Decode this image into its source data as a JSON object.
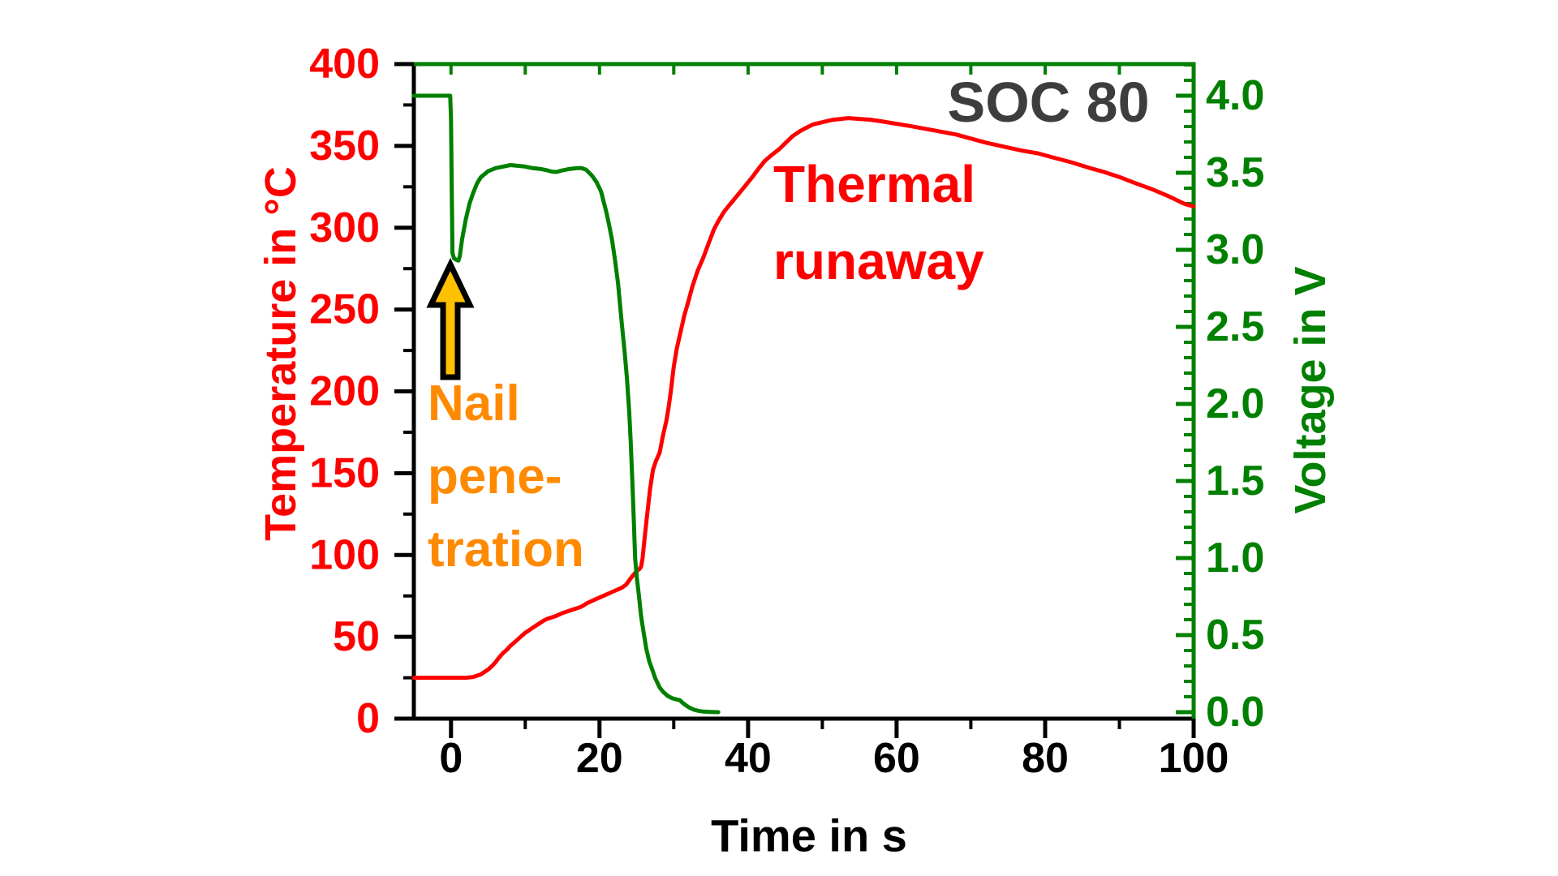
{
  "colors": {
    "red": "#ff0000",
    "green": "#008000",
    "orange": "#ff8a00",
    "gold": "#ffc000",
    "soc_gray": "#3d3d3d",
    "black": "#000000",
    "background": "#ffffff"
  },
  "chart_data": {
    "type": "line",
    "title": "",
    "x": {
      "label": "Time in s",
      "range": [
        -5,
        100
      ],
      "major_ticks": [
        {
          "value": 0,
          "label": "0"
        },
        {
          "value": 20,
          "label": "20"
        },
        {
          "value": 40,
          "label": "40"
        },
        {
          "value": 60,
          "label": "60"
        },
        {
          "value": 80,
          "label": "80"
        },
        {
          "value": 100,
          "label": "100"
        }
      ],
      "minor_step": 10,
      "top_tick_step": 10
    },
    "temp": {
      "label": "Temperature in °C",
      "range": [
        0,
        400
      ],
      "major_ticks": [
        {
          "value": 0,
          "label": "0"
        },
        {
          "value": 50,
          "label": "50"
        },
        {
          "value": 100,
          "label": "100"
        },
        {
          "value": 150,
          "label": "150"
        },
        {
          "value": 200,
          "label": "200"
        },
        {
          "value": 250,
          "label": "250"
        },
        {
          "value": 300,
          "label": "300"
        },
        {
          "value": 350,
          "label": "350"
        },
        {
          "value": 400,
          "label": "400"
        }
      ],
      "minor_step": 25,
      "color": "#ff0000"
    },
    "volt": {
      "label": "Voltage in V",
      "frame_range": [
        -0.042,
        4.205
      ],
      "tick_range": [
        0,
        4
      ],
      "major_ticks": [
        {
          "value": 0,
          "label": "0.0"
        },
        {
          "value": 0.5,
          "label": "0.5"
        },
        {
          "value": 1,
          "label": "1.0"
        },
        {
          "value": 1.5,
          "label": "1.5"
        },
        {
          "value": 2,
          "label": "2.0"
        },
        {
          "value": 2.5,
          "label": "2.5"
        },
        {
          "value": 3,
          "label": "3.0"
        },
        {
          "value": 3.5,
          "label": "3.5"
        },
        {
          "value": 4,
          "label": "4.0"
        }
      ],
      "minor_step": 0.1,
      "color": "#008000"
    },
    "annotations": {
      "soc": "SOC 80",
      "thermal": [
        "Thermal",
        "runaway"
      ],
      "nail": [
        "Nail",
        "pene-",
        "tration"
      ]
    },
    "series": [
      {
        "name": "temperature",
        "axis": "temp",
        "color": "#ff0000",
        "points": [
          [
            -5,
            25
          ],
          [
            0,
            25
          ],
          [
            2,
            25
          ],
          [
            3,
            25.5
          ],
          [
            4,
            27
          ],
          [
            5,
            30
          ],
          [
            5.5,
            32
          ],
          [
            6,
            34.5
          ],
          [
            6.5,
            37.5
          ],
          [
            7,
            40
          ],
          [
            7.5,
            42
          ],
          [
            8,
            44.5
          ],
          [
            8.5,
            46.5
          ],
          [
            9,
            48.5
          ],
          [
            9.5,
            50.5
          ],
          [
            10,
            52.5
          ],
          [
            10.5,
            54
          ],
          [
            11,
            55.5
          ],
          [
            11.5,
            57
          ],
          [
            12,
            58.5
          ],
          [
            12.5,
            60
          ],
          [
            13,
            61
          ],
          [
            14,
            62.5
          ],
          [
            14.5,
            63.5
          ],
          [
            15,
            64.5
          ],
          [
            16,
            66
          ],
          [
            17,
            67.5
          ],
          [
            17.6,
            68.5
          ],
          [
            18.3,
            70.5
          ],
          [
            19,
            72
          ],
          [
            20,
            74
          ],
          [
            21,
            76
          ],
          [
            22,
            78
          ],
          [
            23,
            80
          ],
          [
            23.6,
            82
          ],
          [
            24,
            84.5
          ],
          [
            24.4,
            87
          ],
          [
            24.8,
            89
          ],
          [
            25.1,
            90.5
          ],
          [
            25.4,
            91.5
          ],
          [
            25.6,
            93
          ],
          [
            25.8,
            98
          ],
          [
            26,
            107
          ],
          [
            26.2,
            116
          ],
          [
            26.5,
            128
          ],
          [
            26.8,
            140
          ],
          [
            27.2,
            152
          ],
          [
            27.6,
            157.5
          ],
          [
            28.1,
            162.5
          ],
          [
            28.5,
            172
          ],
          [
            29,
            182
          ],
          [
            29.3,
            190
          ],
          [
            29.6,
            200
          ],
          [
            30,
            215
          ],
          [
            30.4,
            226
          ],
          [
            30.7,
            232
          ],
          [
            31,
            238
          ],
          [
            31.4,
            246
          ],
          [
            32,
            255.5
          ],
          [
            32.5,
            264
          ],
          [
            33.2,
            273.5
          ],
          [
            34,
            282
          ],
          [
            34.7,
            290.5
          ],
          [
            35.4,
            299
          ],
          [
            36,
            304
          ],
          [
            36.8,
            310
          ],
          [
            37.7,
            315
          ],
          [
            38.7,
            320.5
          ],
          [
            39.6,
            325.5
          ],
          [
            40.5,
            330.5
          ],
          [
            41.4,
            336
          ],
          [
            42.3,
            341
          ],
          [
            43.2,
            344.5
          ],
          [
            44.2,
            348
          ],
          [
            45.1,
            352
          ],
          [
            46,
            356
          ],
          [
            47,
            359
          ],
          [
            47.8,
            361
          ],
          [
            48.7,
            363
          ],
          [
            49.6,
            364
          ],
          [
            50.5,
            365
          ],
          [
            51.5,
            366
          ],
          [
            52.5,
            366.5
          ],
          [
            53.5,
            367
          ],
          [
            55,
            366.5
          ],
          [
            56.5,
            366
          ],
          [
            58,
            365
          ],
          [
            60,
            363.5
          ],
          [
            62,
            362
          ],
          [
            65,
            359.5
          ],
          [
            68,
            357
          ],
          [
            70,
            354.5
          ],
          [
            72,
            352
          ],
          [
            75,
            349
          ],
          [
            77,
            347
          ],
          [
            79,
            345.5
          ],
          [
            81,
            343
          ],
          [
            83.5,
            340
          ],
          [
            86,
            336.5
          ],
          [
            88,
            334
          ],
          [
            90,
            331
          ],
          [
            92,
            327.5
          ],
          [
            94.4,
            323.5
          ],
          [
            96.5,
            319.5
          ],
          [
            98.8,
            314.5
          ],
          [
            100,
            313
          ]
        ]
      },
      {
        "name": "voltage",
        "axis": "volt",
        "color": "#008000",
        "points": [
          [
            -5,
            4.0
          ],
          [
            -0.1,
            4.0
          ],
          [
            0,
            3.85
          ],
          [
            0.1,
            3.4
          ],
          [
            0.2,
            2.98
          ],
          [
            0.4,
            2.945
          ],
          [
            0.7,
            2.935
          ],
          [
            1,
            2.93
          ],
          [
            1.2,
            2.96
          ],
          [
            1.5,
            3.07
          ],
          [
            2,
            3.2
          ],
          [
            2.5,
            3.3
          ],
          [
            3,
            3.37
          ],
          [
            3.5,
            3.43
          ],
          [
            4,
            3.47
          ],
          [
            4.5,
            3.49
          ],
          [
            5,
            3.51
          ],
          [
            6,
            3.53
          ],
          [
            7,
            3.54
          ],
          [
            8,
            3.55
          ],
          [
            9,
            3.545
          ],
          [
            10,
            3.54
          ],
          [
            11,
            3.53
          ],
          [
            12,
            3.525
          ],
          [
            13,
            3.515
          ],
          [
            13.6,
            3.507
          ],
          [
            14.2,
            3.505
          ],
          [
            15,
            3.515
          ],
          [
            16,
            3.525
          ],
          [
            17,
            3.53
          ],
          [
            17.6,
            3.53
          ],
          [
            18.2,
            3.52
          ],
          [
            19,
            3.48
          ],
          [
            19.6,
            3.44
          ],
          [
            20.2,
            3.38
          ],
          [
            20.9,
            3.25
          ],
          [
            21.3,
            3.16
          ],
          [
            21.7,
            3.06
          ],
          [
            22.1,
            2.93
          ],
          [
            22.5,
            2.78
          ],
          [
            23,
            2.52
          ],
          [
            23.4,
            2.33
          ],
          [
            23.7,
            2.16
          ],
          [
            24,
            1.95
          ],
          [
            24.2,
            1.76
          ],
          [
            24.4,
            1.52
          ],
          [
            24.6,
            1.27
          ],
          [
            24.8,
            1.0
          ],
          [
            25,
            0.88
          ],
          [
            25.3,
            0.76
          ],
          [
            25.6,
            0.62
          ],
          [
            26,
            0.5
          ],
          [
            26.3,
            0.41
          ],
          [
            26.7,
            0.33
          ],
          [
            27,
            0.29
          ],
          [
            27.5,
            0.22
          ],
          [
            28.1,
            0.16
          ],
          [
            28.6,
            0.13
          ],
          [
            29.2,
            0.105
          ],
          [
            29.8,
            0.09
          ],
          [
            30.3,
            0.083
          ],
          [
            30.8,
            0.078
          ],
          [
            31.2,
            0.06
          ],
          [
            31.6,
            0.046
          ],
          [
            32,
            0.032
          ],
          [
            32.5,
            0.02
          ],
          [
            33,
            0.012
          ],
          [
            33.5,
            0.007
          ],
          [
            34,
            0.004
          ],
          [
            35,
            0.001
          ],
          [
            36,
            0
          ]
        ]
      }
    ]
  }
}
